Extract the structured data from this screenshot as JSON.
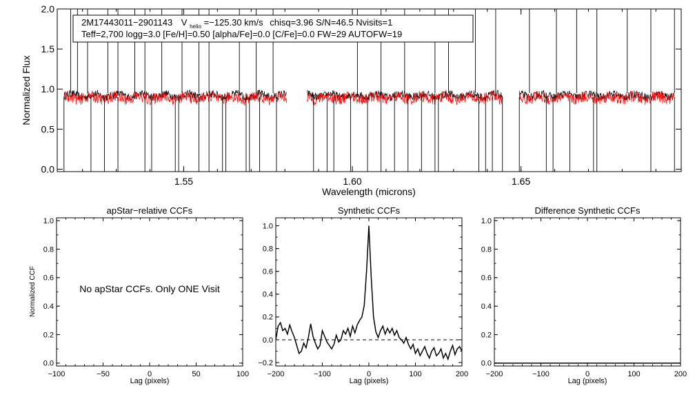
{
  "chart_data": [
    {
      "type": "line",
      "id": "spectrum",
      "title": "",
      "xlabel": "Wavelength (microns)",
      "ylabel": "Normalized Flux",
      "xlim": [
        1.5125,
        1.6975
      ],
      "ylim": [
        -0.03,
        2.0
      ],
      "xticks": [
        {
          "value": 1.55,
          "label": "1.55"
        },
        {
          "value": 1.6,
          "label": "1.60"
        },
        {
          "value": 1.65,
          "label": "1.65"
        }
      ],
      "yticks": [
        {
          "value": 0.0,
          "label": "0.0"
        },
        {
          "value": 0.5,
          "label": "0.5"
        },
        {
          "value": 1.0,
          "label": "1.0"
        },
        {
          "value": 1.5,
          "label": "1.5"
        },
        {
          "value": 2.0,
          "label": "2.0"
        }
      ],
      "chips": [
        [
          1.5145,
          1.5805
        ],
        [
          1.5865,
          1.6445
        ],
        [
          1.6495,
          1.6955
        ]
      ],
      "series": [
        {
          "name": "observed spectrum",
          "color": "#000000",
          "level": 0.92,
          "noise": 0.05
        },
        {
          "name": "best-fit synthetic",
          "color": "#ff0000",
          "level": 0.89,
          "noise": 0.07
        }
      ],
      "dips": [
        1.5145,
        1.5225,
        1.5265,
        1.5305,
        1.5385,
        1.5405,
        1.5475,
        1.5485,
        1.5545,
        1.5575,
        1.5615,
        1.5625,
        1.5685,
        1.5695,
        1.5725,
        1.5775,
        1.5885,
        1.5925,
        1.5945,
        1.5995,
        1.6045,
        1.6085,
        1.6125,
        1.6165,
        1.6205,
        1.6245,
        1.6255,
        1.6375,
        1.6395,
        1.6415,
        1.6445,
        1.6495,
        1.6575,
        1.6595,
        1.6645,
        1.6715,
        1.6725,
        1.6885,
        1.6955
      ],
      "spikes": [
        1.5165,
        1.5185,
        1.5215,
        1.5275,
        1.5305,
        1.5355,
        1.5385,
        1.5435,
        1.5495,
        1.5545,
        1.5575,
        1.5665,
        1.5715,
        1.5765,
        1.6015,
        1.6085,
        1.6155,
        1.6245,
        1.6285,
        1.6365,
        1.6425,
        1.6525,
        1.6605,
        1.6665,
        1.6725,
        1.6815,
        1.6885,
        1.6955
      ],
      "annotation_line1": {
        "id": "2M17443011−2901143",
        "v_label": "V",
        "v_sub": "helio",
        "v_value": "=−125.30 km/s",
        "rest": "chisq=3.96  S/N=46.5  Nvisits=1"
      },
      "annotation_line2": "Teff=2,700 logg=3.0 [Fe/H]=0.50 [alpha/Fe]=0.0 [C/Fe]=0.0 FW=29 AUTOFW=19"
    },
    {
      "type": "line",
      "id": "apstar_ccf",
      "title": "apStar−relative CCFs",
      "xlabel": "Lag (pixels)",
      "ylabel": "Normalized CCF",
      "xlim": [
        -100,
        100
      ],
      "ylim": [
        -0.02,
        1.02
      ],
      "xticks": [
        {
          "value": -100,
          "label": "−100"
        },
        {
          "value": -50,
          "label": "−50"
        },
        {
          "value": 0,
          "label": "0"
        },
        {
          "value": 50,
          "label": "50"
        },
        {
          "value": 100,
          "label": "100"
        }
      ],
      "yticks": [
        {
          "value": 0.0,
          "label": "0.0"
        },
        {
          "value": 0.2,
          "label": "0.2"
        },
        {
          "value": 0.4,
          "label": "0.4"
        },
        {
          "value": 0.6,
          "label": "0.6"
        },
        {
          "value": 0.8,
          "label": "0.8"
        },
        {
          "value": 1.0,
          "label": "1.0"
        }
      ],
      "message": "No apStar CCFs.  Only ONE Visit",
      "series": []
    },
    {
      "type": "line",
      "id": "synthetic_ccf",
      "title": "Synthetic CCFs",
      "xlabel": "Lag (pixels)",
      "ylabel": "",
      "xlim": [
        -200,
        200
      ],
      "ylim": [
        -0.23,
        1.07
      ],
      "xticks": [
        {
          "value": -200,
          "label": "−200"
        },
        {
          "value": -100,
          "label": "−100"
        },
        {
          "value": 0,
          "label": "0"
        },
        {
          "value": 100,
          "label": "100"
        },
        {
          "value": 200,
          "label": "200"
        }
      ],
      "yticks": [
        {
          "value": -0.2,
          "label": "−0.2"
        },
        {
          "value": 0.0,
          "label": "0.0"
        },
        {
          "value": 0.2,
          "label": "0.2"
        },
        {
          "value": 0.4,
          "label": "0.4"
        },
        {
          "value": 0.6,
          "label": "0.6"
        },
        {
          "value": 0.8,
          "label": "0.8"
        },
        {
          "value": 1.0,
          "label": "1.0"
        }
      ],
      "reference_line": 0.0,
      "series": [
        {
          "name": "synthetic CCF",
          "color": "#000000",
          "x": [
            -200,
            -195,
            -190,
            -185,
            -180,
            -175,
            -170,
            -165,
            -160,
            -155,
            -150,
            -145,
            -140,
            -135,
            -130,
            -125,
            -120,
            -115,
            -110,
            -105,
            -100,
            -95,
            -90,
            -85,
            -80,
            -75,
            -70,
            -65,
            -60,
            -55,
            -50,
            -45,
            -40,
            -35,
            -30,
            -25,
            -20,
            -15,
            -10,
            -5,
            0,
            5,
            10,
            15,
            20,
            25,
            30,
            35,
            40,
            45,
            50,
            55,
            60,
            65,
            70,
            75,
            80,
            85,
            90,
            95,
            100,
            105,
            110,
            115,
            120,
            125,
            130,
            135,
            140,
            145,
            150,
            155,
            160,
            165,
            170,
            175,
            180,
            185,
            190,
            195,
            200
          ],
          "y": [
            0.0,
            0.12,
            0.15,
            0.08,
            0.1,
            0.05,
            0.13,
            0.07,
            0.02,
            -0.05,
            -0.12,
            -0.1,
            -0.03,
            -0.07,
            0.02,
            0.14,
            0.03,
            -0.03,
            -0.08,
            -0.05,
            0.08,
            0.03,
            -0.02,
            -0.05,
            -0.08,
            -0.04,
            0.04,
            -0.02,
            0.0,
            0.08,
            0.05,
            0.1,
            0.03,
            0.12,
            0.06,
            0.13,
            0.17,
            0.2,
            0.3,
            0.6,
            1.0,
            0.55,
            0.2,
            0.07,
            0.02,
            0.08,
            0.12,
            0.05,
            0.1,
            0.06,
            0.1,
            0.04,
            0.08,
            0.02,
            0.0,
            -0.03,
            0.02,
            -0.04,
            -0.08,
            -0.04,
            -0.12,
            -0.08,
            -0.14,
            -0.1,
            -0.06,
            -0.12,
            -0.16,
            -0.1,
            -0.07,
            -0.14,
            -0.12,
            -0.08,
            -0.16,
            -0.12,
            -0.17,
            -0.1,
            -0.05,
            -0.13,
            -0.08,
            -0.06,
            -0.1
          ]
        }
      ]
    },
    {
      "type": "line",
      "id": "difference_ccf",
      "title": "Difference Synthetic CCFs",
      "xlabel": "Lag (pixels)",
      "ylabel": "",
      "xlim": [
        -200,
        200
      ],
      "ylim": [
        -0.02,
        1.02
      ],
      "xticks": [
        {
          "value": -200,
          "label": "−200"
        },
        {
          "value": -100,
          "label": "−100"
        },
        {
          "value": 0,
          "label": "0"
        },
        {
          "value": 100,
          "label": "100"
        },
        {
          "value": 200,
          "label": "200"
        }
      ],
      "yticks": [
        {
          "value": 0.0,
          "label": "0.0"
        },
        {
          "value": 0.2,
          "label": "0.2"
        },
        {
          "value": 0.4,
          "label": "0.4"
        },
        {
          "value": 0.6,
          "label": "0.6"
        },
        {
          "value": 0.8,
          "label": "0.8"
        },
        {
          "value": 1.0,
          "label": "1.0"
        }
      ],
      "series": [
        {
          "name": "difference CCF",
          "color": "#000000",
          "x": [
            -200,
            200
          ],
          "y": [
            0.0,
            0.0
          ]
        }
      ]
    }
  ]
}
